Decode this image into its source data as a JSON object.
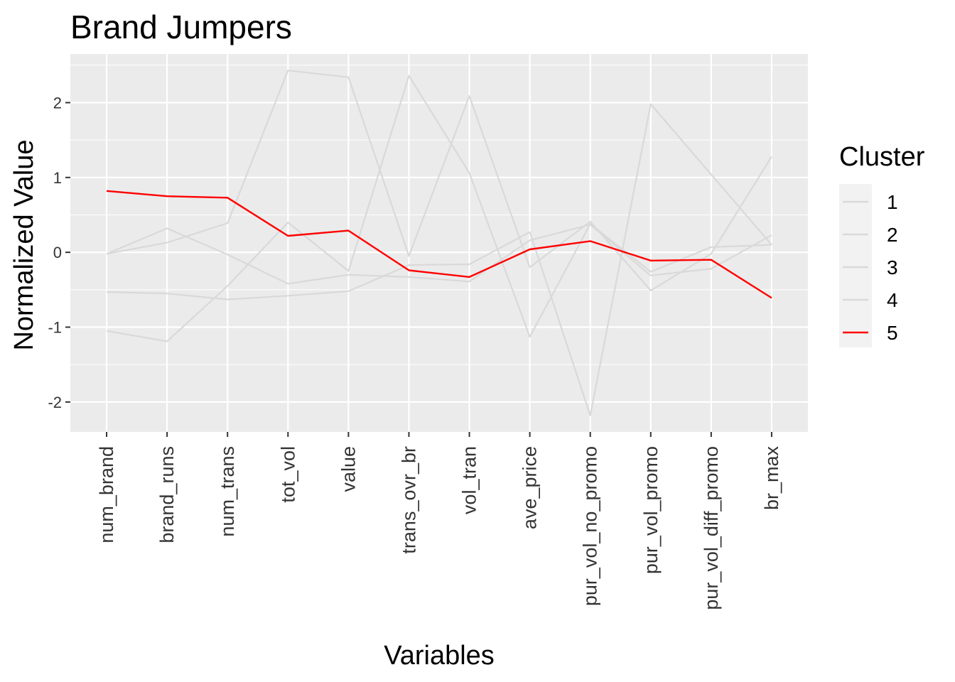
{
  "chart_data": {
    "type": "line",
    "title": "Brand Jumpers",
    "xlabel": "Variables",
    "ylabel": "Normalized Value",
    "categories": [
      "num_brand",
      "brand_runs",
      "num_trans",
      "tot_vol",
      "value",
      "trans_ovr_br",
      "vol_tran",
      "ave_price",
      "pur_vol_no_promo",
      "pur_vol_promo",
      "pur_vol_diff_promo",
      "br_max"
    ],
    "ylim": [
      -2.4,
      2.65
    ],
    "yticks": [
      -2,
      -1,
      0,
      1,
      2
    ],
    "grid": true,
    "legend": {
      "title": "Cluster",
      "placement": "right"
    },
    "series": [
      {
        "name": "1",
        "color": "#d9d9d9",
        "values": [
          -0.02,
          0.13,
          0.39,
          2.43,
          2.34,
          -0.05,
          2.09,
          -0.2,
          0.41,
          -0.51,
          -0.02,
          1.28
        ]
      },
      {
        "name": "2",
        "color": "#d9d9d9",
        "values": [
          -0.53,
          -0.55,
          -0.63,
          -0.58,
          -0.52,
          -0.17,
          -0.16,
          0.27,
          -2.18,
          1.98,
          1.04,
          0.1
        ]
      },
      {
        "name": "3",
        "color": "#d9d9d9",
        "values": [
          -1.05,
          -1.19,
          -0.45,
          0.4,
          -0.25,
          2.36,
          1.06,
          -1.13,
          0.38,
          -0.26,
          0.07,
          0.1
        ]
      },
      {
        "name": "4",
        "color": "#d9d9d9",
        "values": [
          -0.02,
          0.32,
          -0.03,
          -0.42,
          -0.3,
          -0.33,
          -0.39,
          0.16,
          0.37,
          -0.31,
          -0.22,
          0.23
        ]
      },
      {
        "name": "5",
        "color": "#ff0000",
        "values": [
          0.82,
          0.75,
          0.73,
          0.22,
          0.29,
          -0.24,
          -0.33,
          0.04,
          0.15,
          -0.11,
          -0.1,
          -0.61
        ]
      }
    ]
  }
}
